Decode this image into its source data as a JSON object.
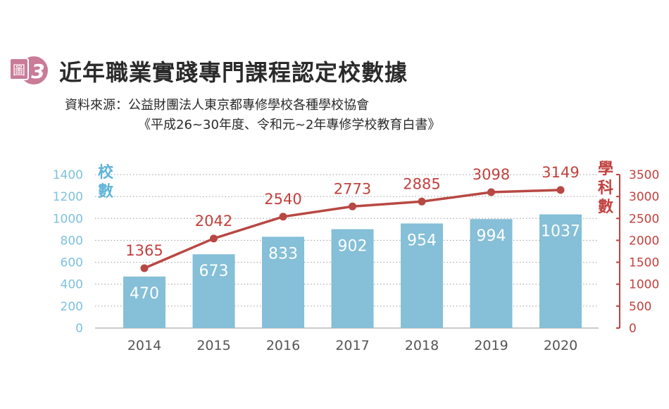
{
  "figure": {
    "badge_label": "圖",
    "badge_number": "3",
    "title": "近年職業實踐專門課程認定校數據",
    "source_line1": "資料來源：公益財團法人東京都專修學校各種學校協會",
    "source_line2": "《平成26~30年度、令和元~2年專修学校教育白書》"
  },
  "colors": {
    "bar": "#85bfd8",
    "line": "#b84844",
    "badge": "#c97b97",
    "left_axis": "#7fc1dc",
    "right_axis": "#c1413e",
    "grid": "#9a9a9a"
  },
  "chart_data": {
    "type": "bar+line",
    "categories": [
      "2014",
      "2015",
      "2016",
      "2017",
      "2018",
      "2019",
      "2020"
    ],
    "series": [
      {
        "name": "校數",
        "type": "bar",
        "axis": "left",
        "values": [
          470,
          673,
          833,
          902,
          954,
          994,
          1037
        ]
      },
      {
        "name": "學科數",
        "type": "line",
        "axis": "right",
        "values": [
          1365,
          2042,
          2540,
          2773,
          2885,
          3098,
          3149
        ]
      }
    ],
    "ylabel_left": "校數",
    "ylabel_right": "學科數",
    "ylim_left": [
      0,
      1400
    ],
    "ylim_right": [
      0,
      3500
    ],
    "yticks_left": [
      "0",
      "200",
      "400",
      "600",
      "800",
      "1000",
      "1200",
      "1400"
    ],
    "yticks_right": [
      "0",
      "500",
      "1000",
      "1500",
      "2000",
      "2500",
      "3000",
      "3500"
    ],
    "grid": true
  }
}
